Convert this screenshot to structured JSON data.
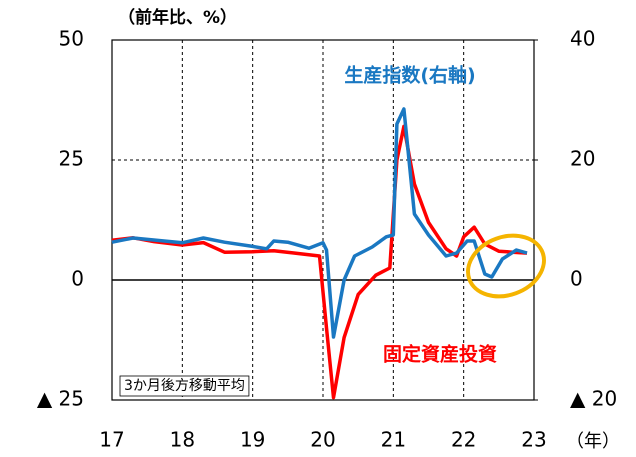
{
  "chart_data": {
    "type": "line",
    "y_unit_label": "（前年比、%）",
    "x_unit_label": "（年）",
    "note": "3か月後方移動平均",
    "xlim": [
      17,
      23
    ],
    "xticks": [
      17,
      18,
      19,
      20,
      21,
      22,
      23
    ],
    "ylim": [
      -25,
      50
    ],
    "yticks": [
      {
        "value": -25,
        "label": "▲ 25"
      },
      0,
      25,
      50
    ],
    "y2lim": [
      -20,
      40
    ],
    "y2ticks": [
      {
        "value": -20,
        "label": "▲ 20"
      },
      0,
      20,
      40
    ],
    "grid": true,
    "series": [
      {
        "name": "固定資産投資",
        "color": "#ff0000",
        "axis": "y",
        "x": [
          17.0,
          17.3,
          17.6,
          18.0,
          18.3,
          18.6,
          19.0,
          19.3,
          19.6,
          19.95,
          20.05,
          20.15,
          20.3,
          20.5,
          20.75,
          20.95,
          21.05,
          21.15,
          21.3,
          21.5,
          21.75,
          21.9,
          22.0,
          22.15,
          22.3,
          22.5,
          22.7,
          22.9
        ],
        "values": [
          8.3,
          8.8,
          8.0,
          7.3,
          7.8,
          5.8,
          5.9,
          6.1,
          5.6,
          5.0,
          -10,
          -24.5,
          -12,
          -3,
          1,
          2.5,
          25,
          32,
          20,
          12,
          6.5,
          5,
          9,
          11,
          7.5,
          6,
          5.8,
          5.6
        ]
      },
      {
        "name": "生産指数(右軸)",
        "color": "#1a78c2",
        "axis": "y2",
        "x": [
          17.0,
          17.3,
          18.0,
          18.3,
          18.6,
          19.0,
          19.2,
          19.3,
          19.5,
          19.8,
          20.0,
          20.05,
          20.15,
          20.3,
          20.45,
          20.7,
          20.9,
          21.0,
          21.05,
          21.15,
          21.3,
          21.5,
          21.75,
          21.9,
          22.05,
          22.15,
          22.3,
          22.4,
          22.55,
          22.75,
          22.9
        ],
        "values": [
          6.3,
          7,
          6.2,
          7.0,
          6.3,
          5.6,
          5.2,
          6.5,
          6.3,
          5.3,
          6.2,
          5,
          -9.5,
          0,
          4,
          5.5,
          7.2,
          7.5,
          26,
          28.5,
          11,
          7.5,
          4,
          4.5,
          6.5,
          6.5,
          1,
          0.5,
          3.5,
          5,
          4.5
        ]
      }
    ]
  }
}
